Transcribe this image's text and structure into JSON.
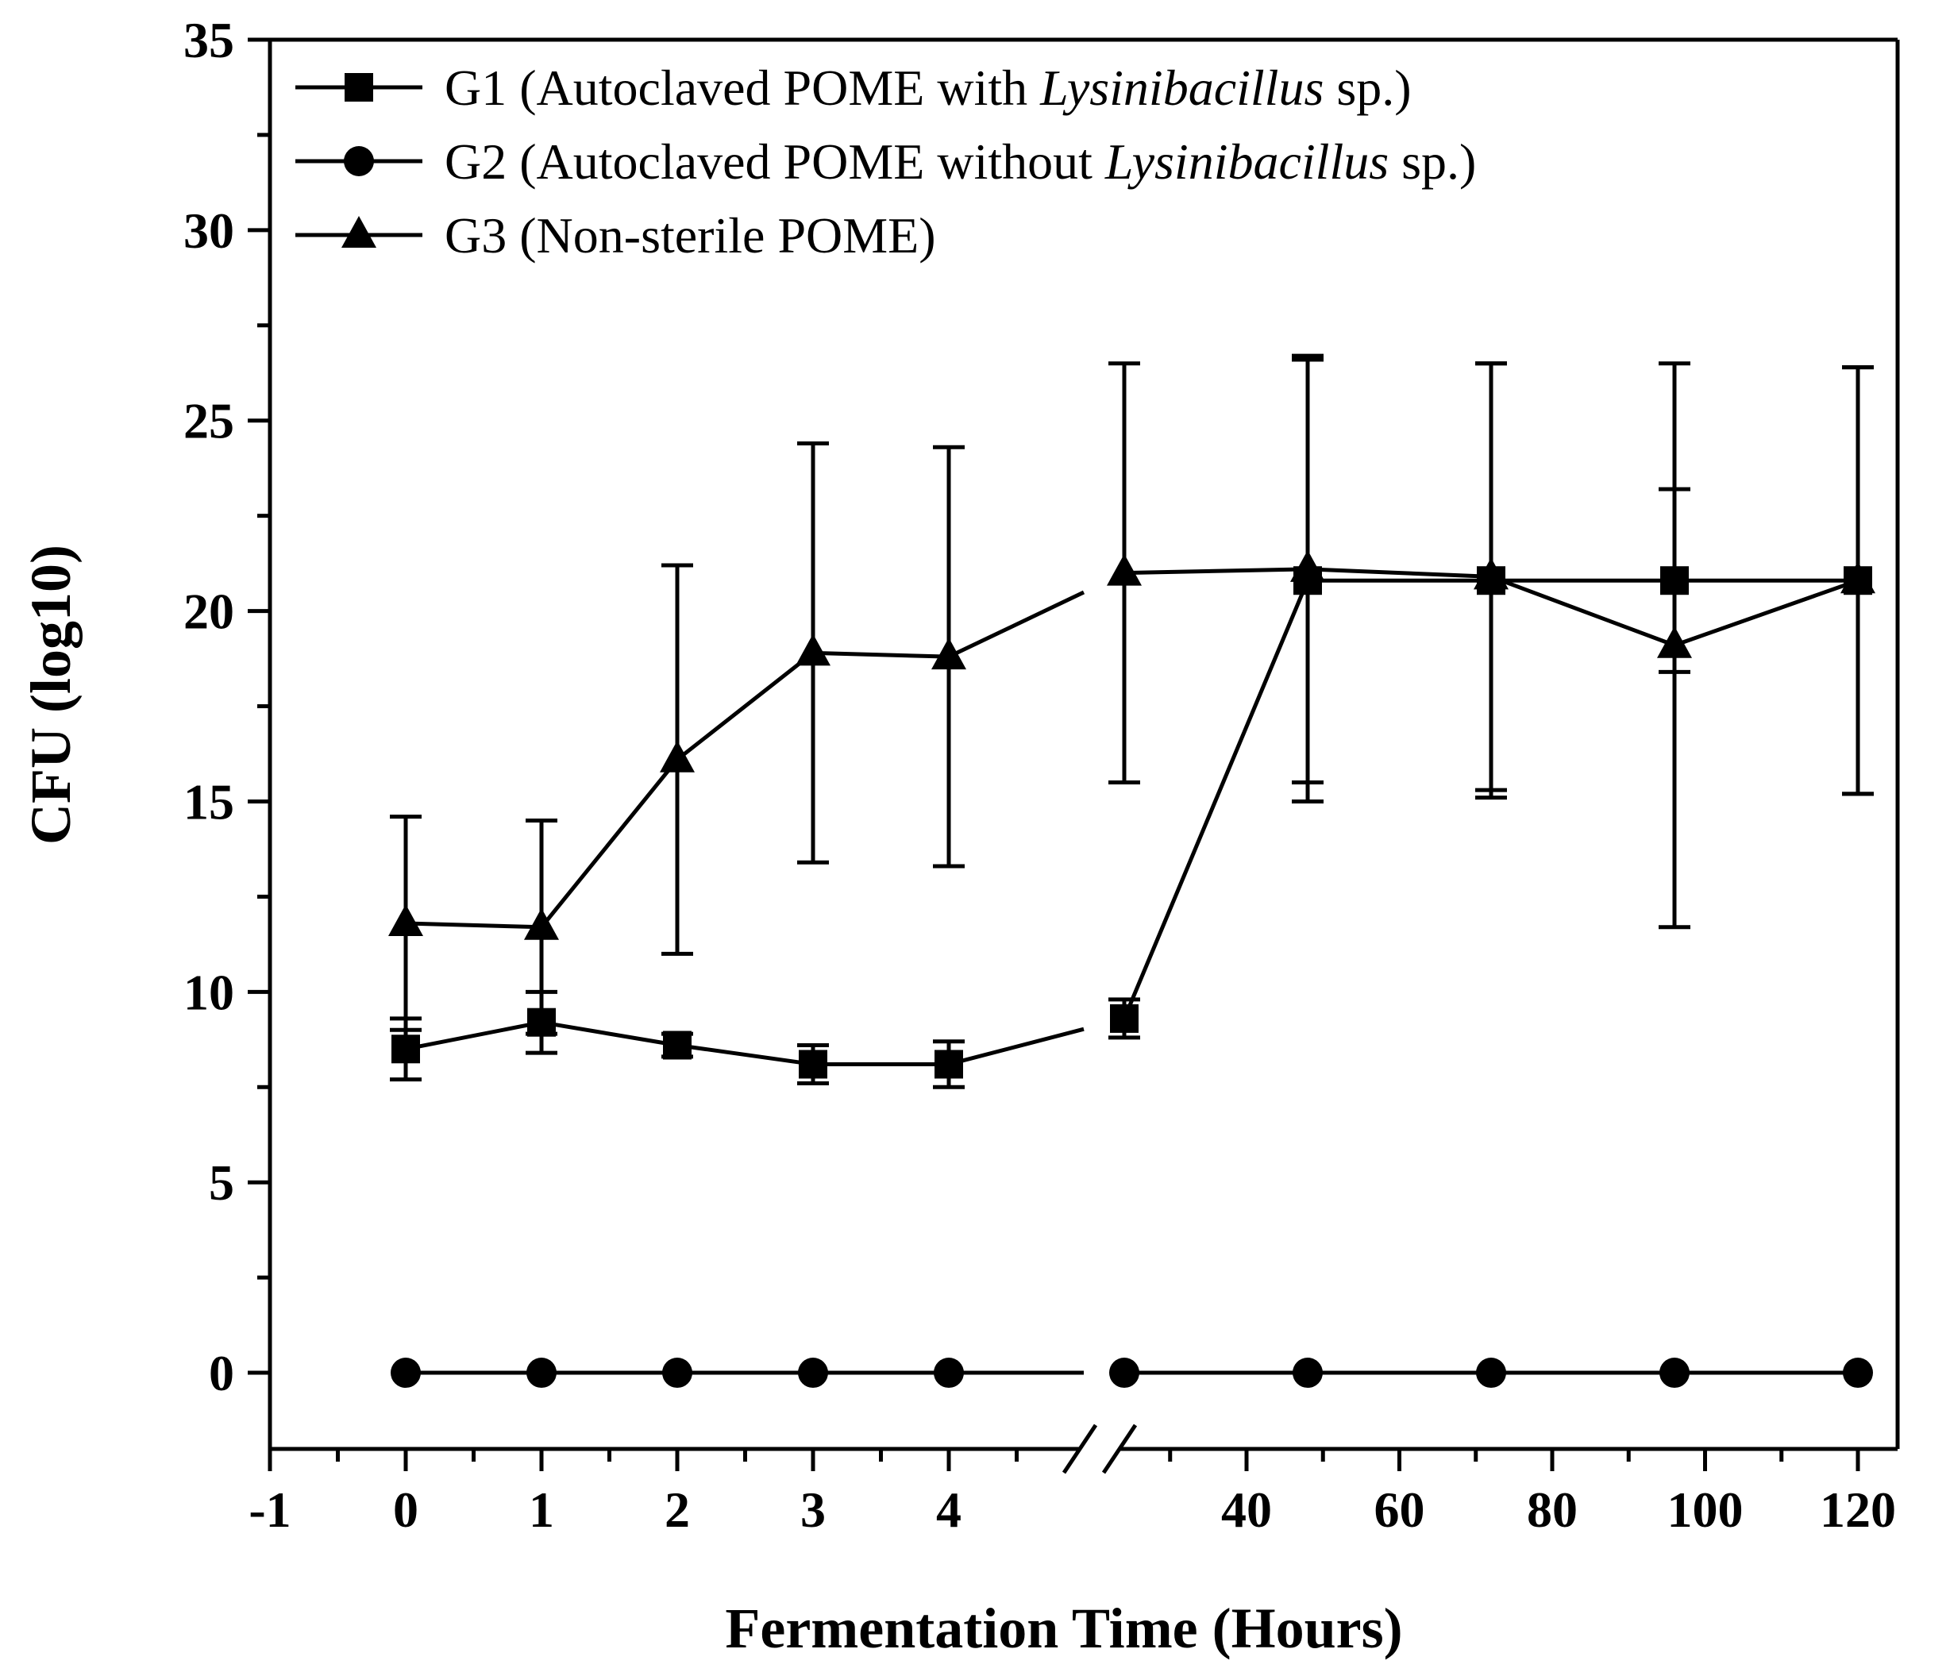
{
  "chart_data": {
    "type": "line",
    "xlabel": "Fermentation Time (Hours)",
    "ylabel": "CFU (log10)",
    "ylim": [
      -2,
      35
    ],
    "yticks": [
      0,
      5,
      10,
      15,
      20,
      25,
      30,
      35
    ],
    "x_axis_break": true,
    "x_segment_left": {
      "range": [
        -1,
        5
      ],
      "ticks": [
        -1,
        0,
        1,
        2,
        3,
        4
      ]
    },
    "x_segment_right": {
      "range": [
        10,
        130
      ],
      "ticks": [
        40,
        60,
        80,
        100,
        120
      ]
    },
    "legend_position": "top-left",
    "grid": false,
    "series": [
      {
        "name": "G1 (Autoclaved POME with Lysinibacillus sp.)",
        "legend_parts": [
          "G1 (Autoclaved POME with ",
          "Lysinibacillus",
          " sp.)"
        ],
        "marker": "square",
        "x": [
          0,
          1,
          2,
          3,
          4,
          24,
          48,
          72,
          96,
          120
        ],
        "y": [
          8.5,
          9.2,
          8.6,
          8.1,
          8.1,
          9.3,
          20.8,
          20.8,
          20.8,
          20.8
        ],
        "err": [
          0.8,
          0.8,
          0.3,
          0.5,
          0.6,
          0.5,
          5.8,
          5.7,
          2.4,
          5.6
        ]
      },
      {
        "name": "G2 (Autoclaved POME without Lysinibacillus sp.)",
        "legend_parts": [
          "G2 (Autoclaved POME without ",
          "Lysinibacillus",
          " sp.)"
        ],
        "marker": "circle",
        "x": [
          0,
          1,
          2,
          3,
          4,
          24,
          48,
          72,
          96,
          120
        ],
        "y": [
          0,
          0,
          0,
          0,
          0,
          0,
          0,
          0,
          0,
          0
        ],
        "err": [
          0,
          0,
          0,
          0,
          0,
          0,
          0,
          0,
          0,
          0
        ]
      },
      {
        "name": "G3 (Non-sterile POME)",
        "legend_parts": [
          "G3 (Non-sterile POME)",
          "",
          ""
        ],
        "marker": "triangle",
        "x": [
          0,
          1,
          2,
          3,
          4,
          24,
          48,
          72,
          96,
          120
        ],
        "y": [
          11.8,
          11.7,
          16.1,
          18.9,
          18.8,
          21.0,
          21.1,
          20.9,
          19.1,
          20.8
        ],
        "err": [
          2.8,
          2.8,
          5.1,
          5.5,
          5.5,
          5.5,
          5.6,
          5.6,
          7.4,
          5.6
        ]
      }
    ]
  }
}
